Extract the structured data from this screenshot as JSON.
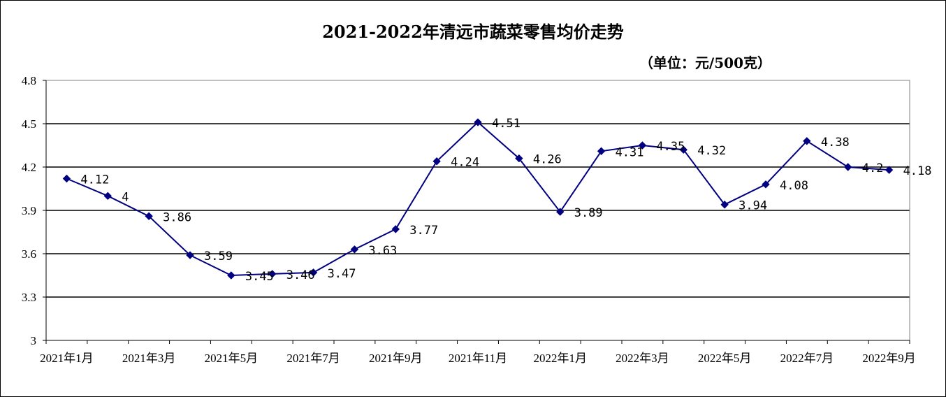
{
  "chart_data": {
    "type": "line",
    "title": "2021-2022年清远市蔬菜零售均价走势",
    "subtitle": "（单位：元/500克）",
    "xlabel": "",
    "ylabel": "",
    "ylim": [
      3,
      4.8
    ],
    "yticks": [
      "4.8",
      "4.5",
      "4.2",
      "3.9",
      "3.6",
      "3.3",
      "3"
    ],
    "ytick_values": [
      4.8,
      4.5,
      4.2,
      3.9,
      3.6,
      3.3,
      3.0
    ],
    "xtick_labels": [
      "2021年1月",
      "2021年3月",
      "2021年5月",
      "2021年7月",
      "2021年9月",
      "2021年11月",
      "2022年1月",
      "2022年3月",
      "2022年5月",
      "2022年7月",
      "2022年9月"
    ],
    "x": [
      "2021-01",
      "2021-02",
      "2021-03",
      "2021-04",
      "2021-05",
      "2021-06",
      "2021-07",
      "2021-08",
      "2021-09",
      "2021-10",
      "2021-11",
      "2021-12",
      "2022-01",
      "2022-02",
      "2022-03",
      "2022-04",
      "2022-05",
      "2022-06",
      "2022-07",
      "2022-08",
      "2022-09"
    ],
    "series": [
      {
        "values": [
          4.12,
          4,
          3.86,
          3.59,
          3.45,
          3.46,
          3.47,
          3.63,
          3.77,
          4.24,
          4.51,
          4.26,
          3.89,
          4.31,
          4.35,
          4.32,
          3.94,
          4.08,
          4.38,
          4.2,
          4.18
        ],
        "labels": [
          "4.12",
          "4",
          "3.86",
          "3.59",
          "3.45",
          "3.46",
          "3.47",
          "3.63",
          "3.77",
          "4.24",
          "4.51",
          "4.26",
          "3.89",
          "4.31",
          "4.35",
          "4.32",
          "3.94",
          "4.08",
          "4.38",
          "4.2",
          "4.18"
        ]
      }
    ],
    "grid": true,
    "legend": "none",
    "line_color": "#000080"
  }
}
